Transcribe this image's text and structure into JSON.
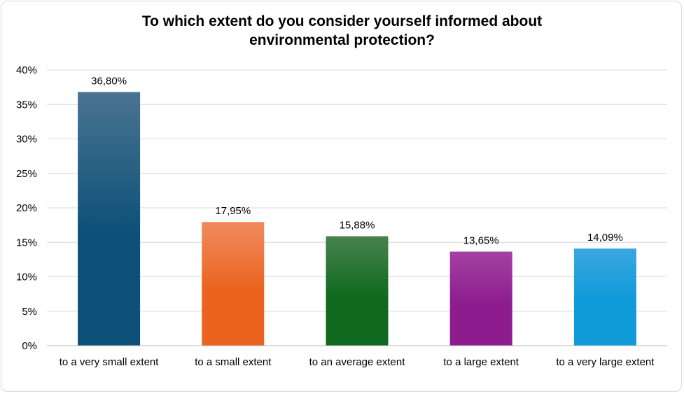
{
  "chart_data": {
    "type": "bar",
    "title_lines": [
      "To which extent do you consider yourself informed about",
      "environmental protection?"
    ],
    "categories": [
      "to a very small extent",
      "to a small extent",
      "to an average extent",
      "to a large extent",
      "to a very large extent"
    ],
    "values": [
      36.8,
      17.95,
      15.88,
      13.65,
      14.09
    ],
    "value_labels": [
      "36,80%",
      "17,95%",
      "15,88%",
      "13,65%",
      "14,09%"
    ],
    "colors_top": [
      "#4a7491",
      "#f08b5e",
      "#47824d",
      "#a341a3",
      "#3aa6e0"
    ],
    "colors_bottom": [
      "#0d5178",
      "#ea6420",
      "#0f6a1f",
      "#8d1d8f",
      "#0f9ad9"
    ],
    "ylim": [
      0,
      40
    ],
    "yticks": [
      0,
      5,
      10,
      15,
      20,
      25,
      30,
      35,
      40
    ],
    "ytick_labels": [
      "0%",
      "5%",
      "10%",
      "15%",
      "20%",
      "25%",
      "30%",
      "35%",
      "40%"
    ],
    "grid": true,
    "gridline_color": "#d9d9d9",
    "xlabel": "",
    "ylabel": ""
  }
}
